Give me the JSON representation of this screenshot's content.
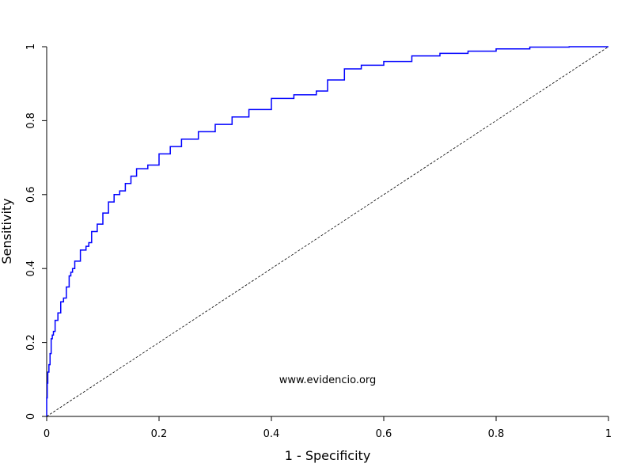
{
  "chart_data": {
    "type": "line",
    "title": "",
    "xlabel": "1 - Specificity",
    "ylabel": "Sensitivity",
    "xlim": [
      0,
      1
    ],
    "ylim": [
      0,
      1
    ],
    "x_ticks": [
      "0",
      "0.2",
      "0.4",
      "0.6",
      "0.8",
      "1"
    ],
    "y_ticks": [
      "0",
      "0.2",
      "0.4",
      "0.6",
      "0.8",
      "1"
    ],
    "grid": false,
    "legend": "none",
    "annotation": "www.evidencio.org",
    "series": [
      {
        "color": "#0000ff",
        "style": "step",
        "x": [
          0,
          0.001,
          0.002,
          0.004,
          0.006,
          0.008,
          0.01,
          0.012,
          0.015,
          0.02,
          0.025,
          0.03,
          0.035,
          0.04,
          0.043,
          0.046,
          0.05,
          0.06,
          0.07,
          0.075,
          0.08,
          0.09,
          0.1,
          0.11,
          0.12,
          0.13,
          0.14,
          0.15,
          0.16,
          0.18,
          0.2,
          0.22,
          0.24,
          0.27,
          0.3,
          0.33,
          0.36,
          0.4,
          0.44,
          0.48,
          0.5,
          0.53,
          0.56,
          0.6,
          0.65,
          0.7,
          0.75,
          0.8,
          0.86,
          0.93,
          1.0
        ],
        "y": [
          0,
          0.05,
          0.09,
          0.12,
          0.14,
          0.17,
          0.21,
          0.22,
          0.23,
          0.26,
          0.28,
          0.31,
          0.32,
          0.35,
          0.38,
          0.39,
          0.4,
          0.42,
          0.45,
          0.46,
          0.47,
          0.5,
          0.52,
          0.55,
          0.58,
          0.6,
          0.61,
          0.63,
          0.65,
          0.67,
          0.68,
          0.71,
          0.73,
          0.75,
          0.77,
          0.79,
          0.81,
          0.83,
          0.86,
          0.87,
          0.88,
          0.91,
          0.94,
          0.95,
          0.96,
          0.975,
          0.982,
          0.988,
          0.994,
          0.999,
          1.0
        ]
      },
      {
        "color": "#000000",
        "style": "dashed",
        "x": [
          0,
          1
        ],
        "y": [
          0,
          1
        ]
      }
    ]
  }
}
